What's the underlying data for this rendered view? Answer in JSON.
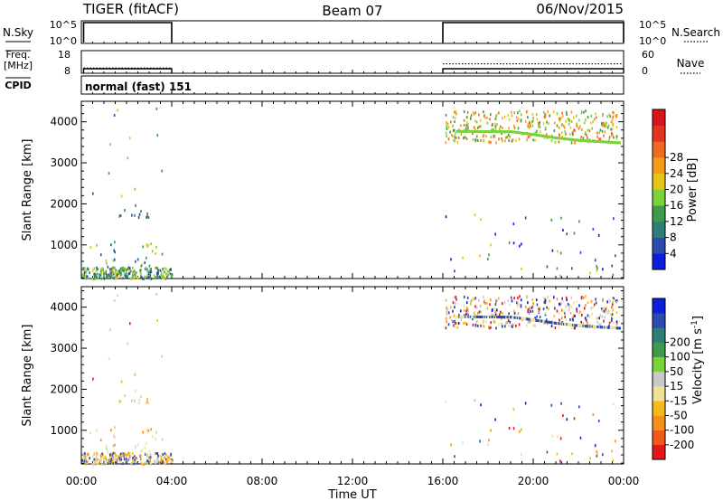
{
  "header": {
    "radar": "TIGER (fitACF)",
    "beam": "Beam 07",
    "date": "06/Nov/2015"
  },
  "chart_data": [
    {
      "type": "line",
      "name": "sky-noise-panel",
      "left_label": "N.Sky",
      "right_label": "N.Search",
      "left_ticks": [
        "10^5",
        "10^0"
      ],
      "right_ticks": [
        "10^5",
        "10^0"
      ],
      "segments": [
        {
          "x_start": 0.1,
          "x_end": 4.0,
          "level": "high"
        },
        {
          "x_start": 16.0,
          "x_end": 24.0,
          "level": "high"
        }
      ]
    },
    {
      "type": "line",
      "name": "frequency-panel",
      "left_label_line1": "Freq.",
      "left_label_line2": "[MHz]",
      "right_label": "Nave",
      "left_ticks": [
        "18",
        "8"
      ],
      "right_ticks": [
        "60",
        "0"
      ],
      "left_range": [
        8,
        18
      ],
      "right_range": [
        0,
        60
      ],
      "freq_segments": [
        {
          "x_start": 0.1,
          "x_end": 4.0,
          "value": 10.0
        },
        {
          "x_start": 16.0,
          "x_end": 24.0,
          "value": 10.0
        }
      ],
      "nave_segments": [
        {
          "x_start": 0.1,
          "x_end": 4.0,
          "value": 14
        },
        {
          "x_start": 16.0,
          "x_end": 24.0,
          "value": 25
        }
      ]
    },
    {
      "type": "table",
      "name": "cpid-panel",
      "label": "CPID",
      "text": "normal (fast) 151"
    },
    {
      "type": "heatmap",
      "name": "power-panel",
      "ylabel": "Slant Range [km]",
      "yticks": [
        1000,
        2000,
        3000,
        4000
      ],
      "ylim": [
        180,
        4500
      ],
      "xlim": [
        0,
        24
      ],
      "colorbar_label": "Power [dB]",
      "colorbar_ticks": [
        "4",
        "8",
        "12",
        "16",
        "20",
        "24",
        "28"
      ],
      "colorbar_colors": [
        "#0a1edc",
        "#2a4cae",
        "#2f7e76",
        "#3e9a4c",
        "#7bd33c",
        "#e8c31a",
        "#f49b1a",
        "#ef6a1d",
        "#e5341d",
        "#d8151c"
      ]
    },
    {
      "type": "heatmap",
      "name": "velocity-panel",
      "ylabel": "Slant Range [km]",
      "yticks": [
        1000,
        2000,
        3000,
        4000
      ],
      "ylim": [
        180,
        4500
      ],
      "xlim": [
        0,
        24
      ],
      "colorbar_label_main": "Velocity [m s",
      "colorbar_label_sup": "-1",
      "colorbar_label_end": "]",
      "colorbar_ticks": [
        "-200",
        "-100",
        "-50",
        "-15",
        "15",
        "50",
        "100",
        "200"
      ],
      "colorbar_colors": [
        "#e5151c",
        "#ee5a1a",
        "#f3901c",
        "#f3bb1a",
        "#efe09a",
        "#c9c9c9",
        "#7bd33c",
        "#3e9a4c",
        "#2f7e76",
        "#2a4cae",
        "#0a1edc"
      ]
    }
  ],
  "xaxis": {
    "ticks": [
      {
        "value": 0,
        "label": "00:00"
      },
      {
        "value": 4,
        "label": "04:00"
      },
      {
        "value": 8,
        "label": "08:00"
      },
      {
        "value": 12,
        "label": "12:00"
      },
      {
        "value": 16,
        "label": "16:00"
      },
      {
        "value": 20,
        "label": "20:00"
      },
      {
        "value": 24,
        "label": "00:00"
      }
    ],
    "label": "Time UT",
    "range": [
      0,
      24
    ]
  },
  "scatter": {
    "power_palette": [
      "#2a4cae",
      "#3e9a4c",
      "#7bd33c",
      "#e8c31a",
      "#f49b1a",
      "#ef6a1d",
      "#2f7e76",
      "#0a1edc"
    ],
    "velocity_palette": [
      "#efe09a",
      "#f3bb1a",
      "#f3901c",
      "#c9c9c9",
      "#7bd33c",
      "#2a4cae",
      "#0a1edc",
      "#e5151c",
      "#3e9a4c"
    ],
    "clusters": [
      {
        "x0": 0.0,
        "x1": 4.0,
        "r0": 200,
        "r1": 480,
        "count": 230,
        "pw": [
          0,
          1,
          6,
          2,
          3
        ],
        "vw": [
          0,
          1,
          3,
          2,
          5
        ]
      },
      {
        "x0": 0.2,
        "x1": 3.8,
        "r0": 480,
        "r1": 1100,
        "count": 28,
        "pw": [
          0,
          1,
          2,
          3
        ],
        "vw": [
          0,
          1,
          2,
          3
        ]
      },
      {
        "x0": 1.5,
        "x1": 3.0,
        "r0": 1600,
        "r1": 2000,
        "count": 14,
        "pw": [
          0,
          6
        ],
        "vw": [
          0,
          3,
          1
        ]
      },
      {
        "x0": 0.3,
        "x1": 3.8,
        "r0": 2200,
        "r1": 4350,
        "count": 12,
        "pw": [
          0,
          1,
          3,
          4
        ],
        "vw": [
          0,
          1,
          3,
          7
        ]
      },
      {
        "x0": 16.1,
        "x1": 23.7,
        "r0": 3520,
        "r1": 4300,
        "count": 340,
        "pw": [
          2,
          1,
          3,
          4,
          5
        ],
        "vw": [
          0,
          1,
          2,
          3,
          5,
          6,
          7
        ]
      },
      {
        "x0": 16.1,
        "x1": 23.9,
        "r0": 200,
        "r1": 1800,
        "count": 45,
        "pw": [
          0,
          7,
          1,
          3
        ],
        "vw": [
          0,
          1,
          5,
          6,
          7,
          2
        ]
      }
    ],
    "green_band": [
      {
        "x": 16.6,
        "range": 3800
      },
      {
        "x": 19.0,
        "range": 3790
      },
      {
        "x": 20.0,
        "range": 3720
      },
      {
        "x": 21.0,
        "range": 3640
      },
      {
        "x": 22.0,
        "range": 3580
      },
      {
        "x": 23.8,
        "range": 3520
      }
    ]
  }
}
